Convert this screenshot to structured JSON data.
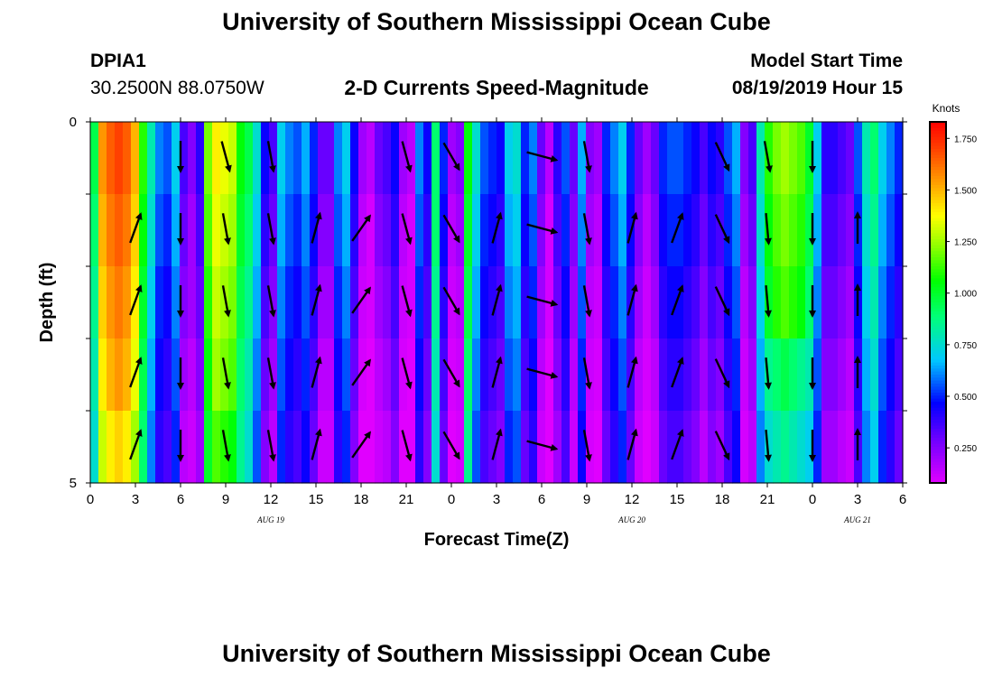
{
  "header": {
    "title": "University of Southern Mississippi Ocean Cube",
    "station_id": "DPIA1",
    "station_location": "30.2500N 88.0750W",
    "subtitle": "2-D Currents Speed-Magnitude",
    "start_label": "Model Start Time",
    "start_value": "08/19/2019 Hour 15"
  },
  "footer": {
    "title": "University of Southern Mississippi Ocean Cube"
  },
  "chart_data": {
    "type": "heatmap",
    "xlabel": "Forecast Time(Z)",
    "ylabel": "Depth (ft)",
    "colorbar_label": "Knots",
    "xlim": [
      0,
      54
    ],
    "ylim": [
      0,
      5
    ],
    "x_tick_values": [
      0,
      3,
      6,
      9,
      12,
      15,
      18,
      21,
      24,
      27,
      30,
      33,
      36,
      39,
      42,
      45,
      48,
      51,
      54
    ],
    "x_tick_labels": [
      "0",
      "3",
      "6",
      "9",
      "12",
      "15",
      "18",
      "21",
      "0",
      "3",
      "6",
      "9",
      "12",
      "15",
      "18",
      "21",
      "0",
      "3",
      "6"
    ],
    "y_tick_labels": [
      "0",
      "5"
    ],
    "date_labels": [
      {
        "x": 12,
        "text": "AUG 19"
      },
      {
        "x": 36,
        "text": "AUG 20"
      },
      {
        "x": 51,
        "text": "AUG 21"
      }
    ],
    "colorbar": {
      "min": 0.08,
      "max": 1.83,
      "ticks": [
        1.75,
        1.5,
        1.25,
        1.0,
        0.75,
        0.5,
        0.25
      ],
      "tick_labels": [
        "1.750",
        "1.500",
        "1.250",
        "1.000",
        "0.750",
        "0.500",
        "0.250"
      ]
    },
    "depth_levels": [
      0.5,
      1.5,
      2.5,
      3.5,
      4.5
    ],
    "speed_knots": [
      [
        0.95,
        1.55,
        1.65,
        1.7,
        1.65,
        1.5,
        1.1,
        0.8,
        0.6,
        0.55,
        0.7,
        0.35,
        0.25,
        0.4,
        1.2,
        1.4,
        1.35,
        1.3,
        1.05,
        0.95,
        0.75,
        0.45,
        0.35,
        0.7,
        0.6,
        0.55,
        0.65,
        0.5,
        0.3,
        0.3,
        0.6,
        0.7,
        0.45,
        0.2,
        0.15,
        0.3,
        0.35,
        0.45,
        0.2,
        0.15,
        0.6,
        0.45,
        0.9,
        0.5,
        0.2,
        0.25,
        1.05,
        0.75,
        0.55,
        0.5,
        0.45,
        0.7,
        0.75,
        0.5,
        0.6,
        0.3,
        0.15,
        0.4,
        0.55,
        0.3,
        0.65,
        0.25,
        0.2,
        0.5,
        0.6,
        0.7,
        0.5,
        0.3,
        0.2,
        0.3,
        0.5,
        0.55,
        0.55,
        0.5,
        0.45,
        0.35,
        0.45,
        0.4,
        0.55,
        0.65,
        0.25,
        0.35,
        0.8,
        1.1,
        1.2,
        1.25,
        1.2,
        1.15,
        1.0,
        0.7,
        0.4,
        0.4,
        0.35,
        0.3,
        0.55,
        0.8,
        0.9,
        0.7,
        0.6,
        0.5
      ],
      [
        0.9,
        1.5,
        1.6,
        1.65,
        1.6,
        1.45,
        1.05,
        0.75,
        0.55,
        0.5,
        0.65,
        0.3,
        0.2,
        0.35,
        1.15,
        1.35,
        1.3,
        1.25,
        1.0,
        0.9,
        0.7,
        0.4,
        0.3,
        0.65,
        0.55,
        0.5,
        0.6,
        0.45,
        0.25,
        0.25,
        0.55,
        0.65,
        0.4,
        0.15,
        0.1,
        0.25,
        0.3,
        0.4,
        0.15,
        0.1,
        0.55,
        0.4,
        0.9,
        0.45,
        0.15,
        0.2,
        1.0,
        0.7,
        0.5,
        0.45,
        0.4,
        0.65,
        0.7,
        0.45,
        0.55,
        0.25,
        0.1,
        0.35,
        0.5,
        0.25,
        0.6,
        0.2,
        0.15,
        0.45,
        0.55,
        0.65,
        0.45,
        0.25,
        0.15,
        0.25,
        0.45,
        0.5,
        0.5,
        0.45,
        0.4,
        0.3,
        0.4,
        0.35,
        0.5,
        0.6,
        0.2,
        0.3,
        0.75,
        1.05,
        1.15,
        1.2,
        1.15,
        1.1,
        0.95,
        0.65,
        0.35,
        0.35,
        0.3,
        0.25,
        0.5,
        0.75,
        0.85,
        0.65,
        0.55,
        0.45
      ],
      [
        0.85,
        1.45,
        1.55,
        1.6,
        1.55,
        1.4,
        1.0,
        0.7,
        0.5,
        0.45,
        0.6,
        0.25,
        0.2,
        0.3,
        1.1,
        1.3,
        1.25,
        1.2,
        0.95,
        0.85,
        0.65,
        0.35,
        0.25,
        0.6,
        0.5,
        0.45,
        0.55,
        0.4,
        0.2,
        0.2,
        0.5,
        0.6,
        0.35,
        0.12,
        0.1,
        0.2,
        0.25,
        0.35,
        0.12,
        0.1,
        0.5,
        0.35,
        0.85,
        0.4,
        0.12,
        0.15,
        0.95,
        0.65,
        0.45,
        0.4,
        0.35,
        0.6,
        0.65,
        0.4,
        0.5,
        0.2,
        0.1,
        0.3,
        0.45,
        0.2,
        0.55,
        0.15,
        0.12,
        0.4,
        0.5,
        0.6,
        0.4,
        0.2,
        0.12,
        0.2,
        0.4,
        0.45,
        0.45,
        0.4,
        0.35,
        0.25,
        0.35,
        0.3,
        0.45,
        0.55,
        0.15,
        0.25,
        0.7,
        1.0,
        1.1,
        1.15,
        1.1,
        1.05,
        0.9,
        0.6,
        0.3,
        0.3,
        0.25,
        0.2,
        0.45,
        0.7,
        0.8,
        0.6,
        0.5,
        0.4
      ],
      [
        0.8,
        1.4,
        1.5,
        1.55,
        1.5,
        1.35,
        0.95,
        0.65,
        0.45,
        0.4,
        0.55,
        0.2,
        0.15,
        0.25,
        1.05,
        1.25,
        1.2,
        1.15,
        0.9,
        0.8,
        0.6,
        0.3,
        0.2,
        0.55,
        0.45,
        0.4,
        0.5,
        0.35,
        0.15,
        0.15,
        0.45,
        0.55,
        0.3,
        0.1,
        0.08,
        0.15,
        0.2,
        0.3,
        0.1,
        0.08,
        0.45,
        0.3,
        0.8,
        0.35,
        0.1,
        0.12,
        0.9,
        0.6,
        0.4,
        0.35,
        0.3,
        0.55,
        0.6,
        0.35,
        0.45,
        0.15,
        0.08,
        0.25,
        0.4,
        0.15,
        0.5,
        0.12,
        0.1,
        0.35,
        0.45,
        0.55,
        0.35,
        0.15,
        0.1,
        0.15,
        0.35,
        0.4,
        0.4,
        0.35,
        0.3,
        0.2,
        0.3,
        0.25,
        0.4,
        0.5,
        0.12,
        0.2,
        0.65,
        0.85,
        0.9,
        0.95,
        0.9,
        0.85,
        0.8,
        0.55,
        0.25,
        0.25,
        0.2,
        0.15,
        0.4,
        0.65,
        0.75,
        0.55,
        0.45,
        0.35
      ],
      [
        0.75,
        1.3,
        1.4,
        1.45,
        1.4,
        1.25,
        0.9,
        0.6,
        0.4,
        0.35,
        0.5,
        0.15,
        0.12,
        0.2,
        1.0,
        1.15,
        1.1,
        1.05,
        0.85,
        0.75,
        0.55,
        0.25,
        0.15,
        0.5,
        0.4,
        0.35,
        0.45,
        0.3,
        0.12,
        0.12,
        0.4,
        0.5,
        0.25,
        0.08,
        0.08,
        0.12,
        0.15,
        0.25,
        0.08,
        0.08,
        0.4,
        0.25,
        0.75,
        0.3,
        0.08,
        0.1,
        0.85,
        0.55,
        0.35,
        0.3,
        0.25,
        0.5,
        0.55,
        0.3,
        0.4,
        0.12,
        0.08,
        0.2,
        0.35,
        0.12,
        0.45,
        0.1,
        0.08,
        0.3,
        0.4,
        0.5,
        0.3,
        0.12,
        0.08,
        0.12,
        0.3,
        0.35,
        0.35,
        0.3,
        0.25,
        0.15,
        0.25,
        0.2,
        0.35,
        0.45,
        0.1,
        0.15,
        0.6,
        0.75,
        0.8,
        0.85,
        0.8,
        0.75,
        0.7,
        0.5,
        0.2,
        0.2,
        0.15,
        0.12,
        0.35,
        0.6,
        0.7,
        0.5,
        0.4,
        0.3
      ]
    ],
    "vectors": {
      "x": [
        3,
        6,
        9,
        12,
        15,
        18,
        21,
        24,
        27,
        30,
        33,
        36,
        39,
        42,
        45,
        48,
        51
      ],
      "depths": [
        0.25,
        1.25,
        2.25,
        3.25,
        4.25
      ],
      "direction_deg_clockwise_from_north": [
        [
          null,
          180,
          165,
          170,
          null,
          null,
          165,
          150,
          null,
          105,
          170,
          null,
          null,
          155,
          170,
          180,
          null
        ],
        [
          20,
          180,
          170,
          170,
          15,
          35,
          165,
          150,
          15,
          105,
          170,
          15,
          20,
          155,
          175,
          180,
          0
        ],
        [
          20,
          180,
          170,
          170,
          15,
          35,
          165,
          150,
          15,
          105,
          170,
          15,
          20,
          155,
          175,
          180,
          0
        ],
        [
          20,
          180,
          170,
          170,
          15,
          35,
          165,
          150,
          15,
          105,
          170,
          15,
          20,
          155,
          175,
          180,
          0
        ],
        [
          20,
          180,
          170,
          170,
          15,
          35,
          165,
          150,
          15,
          105,
          170,
          15,
          20,
          155,
          175,
          180,
          0
        ]
      ]
    }
  }
}
